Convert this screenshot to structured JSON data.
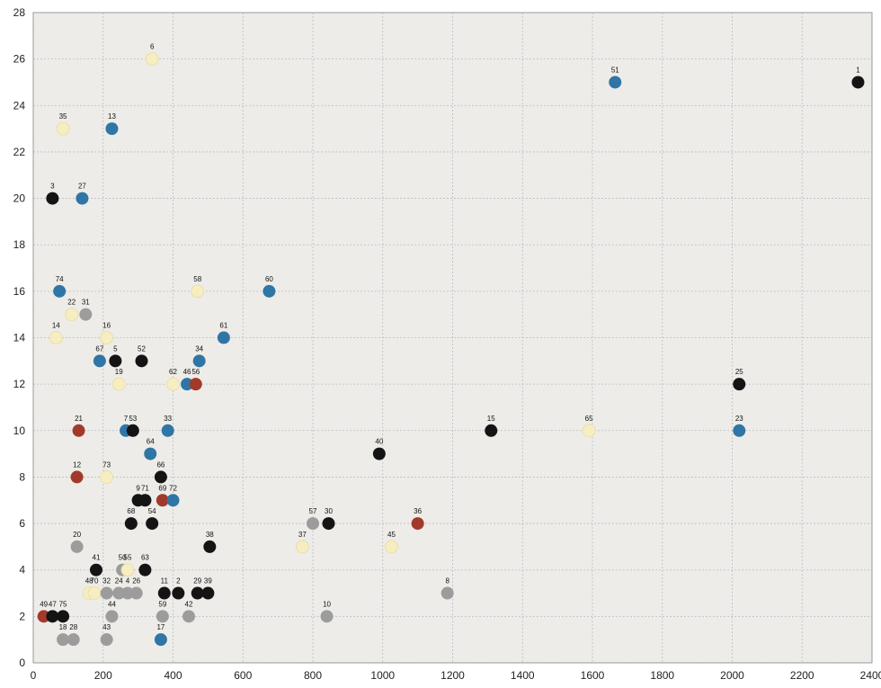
{
  "chart_data": {
    "type": "scatter",
    "title": "",
    "xlabel": "",
    "ylabel": "",
    "xlim": [
      0,
      2400
    ],
    "ylim": [
      0,
      28
    ],
    "x_ticks": [
      0,
      200,
      400,
      600,
      800,
      1000,
      1200,
      1400,
      1600,
      1800,
      2000,
      2200,
      2400
    ],
    "y_ticks": [
      0,
      2,
      4,
      6,
      8,
      10,
      12,
      14,
      16,
      18,
      20,
      22,
      24,
      26,
      28
    ],
    "grid": true,
    "background": "#eeece8",
    "colors": {
      "black": "#141414",
      "blue": "#2f76a6",
      "red": "#a23a2c",
      "yellow": "#f6edc0",
      "gray": "#9c9c9c"
    },
    "points": [
      {
        "label": "1",
        "x": 2360,
        "y": 25,
        "color": "black"
      },
      {
        "label": "51",
        "x": 1665,
        "y": 25,
        "color": "blue"
      },
      {
        "label": "6",
        "x": 340,
        "y": 26,
        "color": "yellow"
      },
      {
        "label": "35",
        "x": 85,
        "y": 23,
        "color": "yellow"
      },
      {
        "label": "13",
        "x": 225,
        "y": 23,
        "color": "blue"
      },
      {
        "label": "3",
        "x": 55,
        "y": 20,
        "color": "black"
      },
      {
        "label": "27",
        "x": 140,
        "y": 20,
        "color": "blue"
      },
      {
        "label": "74",
        "x": 75,
        "y": 16,
        "color": "blue"
      },
      {
        "label": "58",
        "x": 470,
        "y": 16,
        "color": "yellow"
      },
      {
        "label": "60",
        "x": 675,
        "y": 16,
        "color": "blue"
      },
      {
        "label": "22",
        "x": 110,
        "y": 15,
        "color": "yellow"
      },
      {
        "label": "31",
        "x": 150,
        "y": 15,
        "color": "gray"
      },
      {
        "label": "14",
        "x": 65,
        "y": 14,
        "color": "yellow"
      },
      {
        "label": "16",
        "x": 210,
        "y": 14,
        "color": "yellow"
      },
      {
        "label": "61",
        "x": 545,
        "y": 14,
        "color": "blue"
      },
      {
        "label": "67",
        "x": 190,
        "y": 13,
        "color": "blue"
      },
      {
        "label": "5",
        "x": 235,
        "y": 13,
        "color": "black"
      },
      {
        "label": "52",
        "x": 310,
        "y": 13,
        "color": "black"
      },
      {
        "label": "34",
        "x": 475,
        "y": 13,
        "color": "blue"
      },
      {
        "label": "19",
        "x": 245,
        "y": 12,
        "color": "yellow"
      },
      {
        "label": "62",
        "x": 400,
        "y": 12,
        "color": "yellow"
      },
      {
        "label": "46",
        "x": 440,
        "y": 12,
        "color": "blue"
      },
      {
        "label": "56",
        "x": 465,
        "y": 12,
        "color": "red"
      },
      {
        "label": "25",
        "x": 2020,
        "y": 12,
        "color": "black"
      },
      {
        "label": "21",
        "x": 130,
        "y": 10,
        "color": "red"
      },
      {
        "label": "7",
        "x": 265,
        "y": 10,
        "color": "blue"
      },
      {
        "label": "53",
        "x": 285,
        "y": 10,
        "color": "black"
      },
      {
        "label": "33",
        "x": 385,
        "y": 10,
        "color": "blue"
      },
      {
        "label": "15",
        "x": 1310,
        "y": 10,
        "color": "black"
      },
      {
        "label": "65",
        "x": 1590,
        "y": 10,
        "color": "yellow"
      },
      {
        "label": "23",
        "x": 2020,
        "y": 10,
        "color": "blue"
      },
      {
        "label": "64",
        "x": 335,
        "y": 9,
        "color": "blue"
      },
      {
        "label": "40",
        "x": 990,
        "y": 9,
        "color": "black"
      },
      {
        "label": "12",
        "x": 125,
        "y": 8,
        "color": "red"
      },
      {
        "label": "73",
        "x": 210,
        "y": 8,
        "color": "yellow"
      },
      {
        "label": "66",
        "x": 365,
        "y": 8,
        "color": "black"
      },
      {
        "label": "9",
        "x": 300,
        "y": 7,
        "color": "black"
      },
      {
        "label": "71",
        "x": 320,
        "y": 7,
        "color": "black"
      },
      {
        "label": "69",
        "x": 370,
        "y": 7,
        "color": "red"
      },
      {
        "label": "72",
        "x": 400,
        "y": 7,
        "color": "blue"
      },
      {
        "label": "68",
        "x": 280,
        "y": 6,
        "color": "black"
      },
      {
        "label": "54",
        "x": 340,
        "y": 6,
        "color": "black"
      },
      {
        "label": "57",
        "x": 800,
        "y": 6,
        "color": "gray"
      },
      {
        "label": "30",
        "x": 845,
        "y": 6,
        "color": "black"
      },
      {
        "label": "36",
        "x": 1100,
        "y": 6,
        "color": "red"
      },
      {
        "label": "20",
        "x": 125,
        "y": 5,
        "color": "gray"
      },
      {
        "label": "38",
        "x": 505,
        "y": 5,
        "color": "black"
      },
      {
        "label": "37",
        "x": 770,
        "y": 5,
        "color": "yellow"
      },
      {
        "label": "45",
        "x": 1025,
        "y": 5,
        "color": "yellow"
      },
      {
        "label": "41",
        "x": 180,
        "y": 4,
        "color": "black"
      },
      {
        "label": "50",
        "x": 255,
        "y": 4,
        "color": "gray"
      },
      {
        "label": "55",
        "x": 270,
        "y": 4,
        "color": "yellow"
      },
      {
        "label": "63",
        "x": 320,
        "y": 4,
        "color": "black"
      },
      {
        "label": "48",
        "x": 160,
        "y": 3,
        "color": "yellow"
      },
      {
        "label": "70",
        "x": 175,
        "y": 3,
        "color": "yellow"
      },
      {
        "label": "32",
        "x": 210,
        "y": 3,
        "color": "gray"
      },
      {
        "label": "24",
        "x": 245,
        "y": 3,
        "color": "gray"
      },
      {
        "label": "4",
        "x": 270,
        "y": 3,
        "color": "gray"
      },
      {
        "label": "26",
        "x": 295,
        "y": 3,
        "color": "gray"
      },
      {
        "label": "11",
        "x": 375,
        "y": 3,
        "color": "black"
      },
      {
        "label": "2",
        "x": 415,
        "y": 3,
        "color": "black"
      },
      {
        "label": "29",
        "x": 470,
        "y": 3,
        "color": "black"
      },
      {
        "label": "39",
        "x": 500,
        "y": 3,
        "color": "black"
      },
      {
        "label": "8",
        "x": 1185,
        "y": 3,
        "color": "gray"
      },
      {
        "label": "49",
        "x": 30,
        "y": 2,
        "color": "red"
      },
      {
        "label": "47",
        "x": 55,
        "y": 2,
        "color": "black"
      },
      {
        "label": "75",
        "x": 85,
        "y": 2,
        "color": "black"
      },
      {
        "label": "44",
        "x": 225,
        "y": 2,
        "color": "gray"
      },
      {
        "label": "59",
        "x": 370,
        "y": 2,
        "color": "gray"
      },
      {
        "label": "42",
        "x": 445,
        "y": 2,
        "color": "gray"
      },
      {
        "label": "10",
        "x": 840,
        "y": 2,
        "color": "gray"
      },
      {
        "label": "18",
        "x": 85,
        "y": 1,
        "color": "gray"
      },
      {
        "label": "28",
        "x": 115,
        "y": 1,
        "color": "gray"
      },
      {
        "label": "43",
        "x": 210,
        "y": 1,
        "color": "gray"
      },
      {
        "label": "17",
        "x": 365,
        "y": 1,
        "color": "blue"
      }
    ]
  }
}
